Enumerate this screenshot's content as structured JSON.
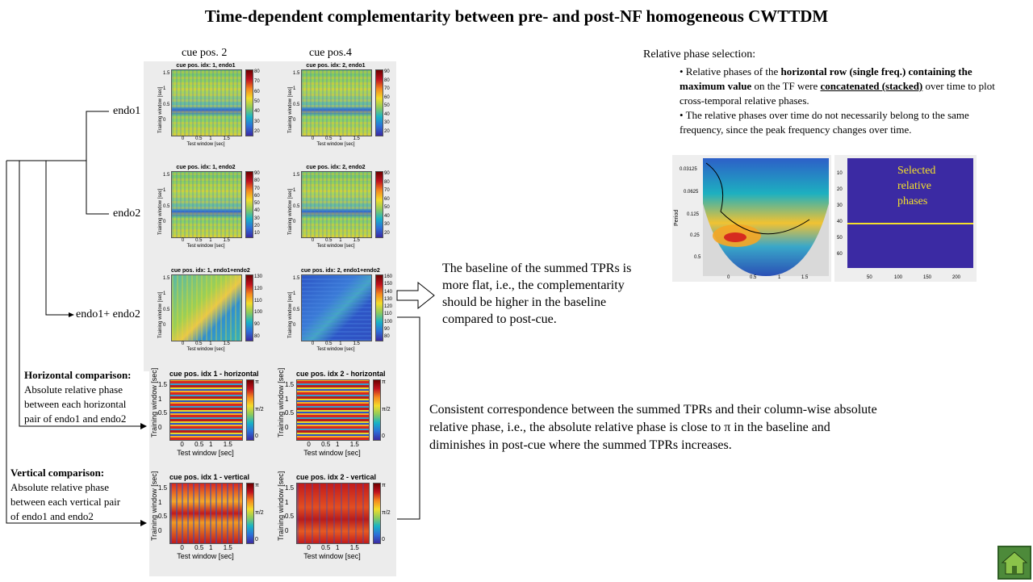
{
  "title": "Time-dependent complementarity between pre- and post-NF homogeneous CWTTDM",
  "columns": {
    "left": "cue pos. 2",
    "right": "cue pos.4"
  },
  "tree_labels": {
    "endo1": "endo1",
    "endo2": "endo2",
    "sum": "endo1+ endo2"
  },
  "axis": {
    "ylabel": "Training window [sec]",
    "xlabel": "Test window [sec]",
    "ticks_y": [
      "1.5",
      "1",
      "0.5",
      "0"
    ],
    "ticks_x": [
      "0",
      "0.5",
      "1",
      "1.5"
    ]
  },
  "heatmaps": {
    "a": {
      "title": "cue pos. idx: 1, endo1",
      "cbar": [
        "80",
        "70",
        "60",
        "50",
        "40",
        "30",
        "20"
      ]
    },
    "b": {
      "title": "cue pos. idx: 2, endo1",
      "cbar": [
        "90",
        "80",
        "70",
        "60",
        "50",
        "40",
        "30",
        "20"
      ]
    },
    "c": {
      "title": "cue pos. idx: 1, endo2",
      "cbar": [
        "90",
        "80",
        "70",
        "60",
        "50",
        "40",
        "30",
        "20",
        "10"
      ]
    },
    "d": {
      "title": "cue pos. idx: 2, endo2",
      "cbar": [
        "90",
        "80",
        "70",
        "60",
        "50",
        "40",
        "30",
        "20"
      ]
    },
    "e": {
      "title": "cue pos. idx: 1, endo1+endo2",
      "cbar": [
        "130",
        "120",
        "110",
        "100",
        "90",
        "80"
      ]
    },
    "f": {
      "title": "cue pos. idx: 2, endo1+endo2",
      "cbar": [
        "160",
        "150",
        "140",
        "130",
        "120",
        "110",
        "100",
        "90",
        "80"
      ]
    },
    "g": {
      "title": "cue pos. idx 1 - horizontal",
      "cbar": [
        "π",
        "π/2",
        "0"
      ]
    },
    "h": {
      "title": "cue pos. idx 2 - horizontal",
      "cbar": [
        "π",
        "π/2",
        "0"
      ]
    },
    "i": {
      "title": "cue pos. idx 1 - vertical",
      "cbar": [
        "π",
        "π/2",
        "0"
      ]
    },
    "j": {
      "title": "cue pos. idx 2 - vertical",
      "cbar": [
        "π",
        "π/2",
        "0"
      ]
    }
  },
  "horizontal_comparison": {
    "heading": "Horizontal comparison:",
    "lines": [
      "Absolute relative phase",
      "between each horizontal",
      "pair of endo1 and endo2"
    ]
  },
  "vertical_comparison": {
    "heading": "Vertical comparison:",
    "lines": [
      "Absolute relative phase",
      "between each vertical pair",
      "of endo1 and endo2"
    ]
  },
  "baseline_note": [
    "The baseline of the summed TPRs is",
    "more flat, i.e., the complementarity",
    "should be higher in the baseline",
    "compared to post-cue."
  ],
  "consistent_note": [
    "Consistent correspondence between the summed TPRs and their column-wise  absolute",
    "relative  phase, i.e., the absolute relative  phase is close to π in the baseline and",
    "diminishes  in post-cue where the summed TPRs increases."
  ],
  "phase_selection": {
    "heading": "Relative  phase selection:",
    "bullet1_pre": "• Relative  phases of the ",
    "bullet1_bold1": "horizontal  row (single freq.) containing",
    "bullet1_bold2": "the maximum  value",
    "bullet1_mid": " on the TF were ",
    "bullet1_ul": "concatenated (stacked)",
    "bullet1_end": "over time  to plot cross-temporal  relative  phases.",
    "bullet2": "• The relative  phases over time  do not necessarily  belong to the same frequency,  since the peak frequency  changes  over time."
  },
  "wavelet": {
    "ylabel": "Period",
    "yticks": [
      "0.03125",
      "0.0625",
      "0.125",
      "0.25",
      "0.5"
    ],
    "xticks": [
      "0",
      "0.5",
      "1",
      "1.5"
    ]
  },
  "selected": {
    "label": [
      "Selected",
      "relative",
      "phases"
    ],
    "yticks": [
      "10",
      "20",
      "30",
      "40",
      "50",
      "60"
    ],
    "xticks": [
      "50",
      "100",
      "150",
      "200"
    ],
    "line_row": 40,
    "bg_color": "#3b2aa3",
    "line_color": "#f5e02a"
  }
}
